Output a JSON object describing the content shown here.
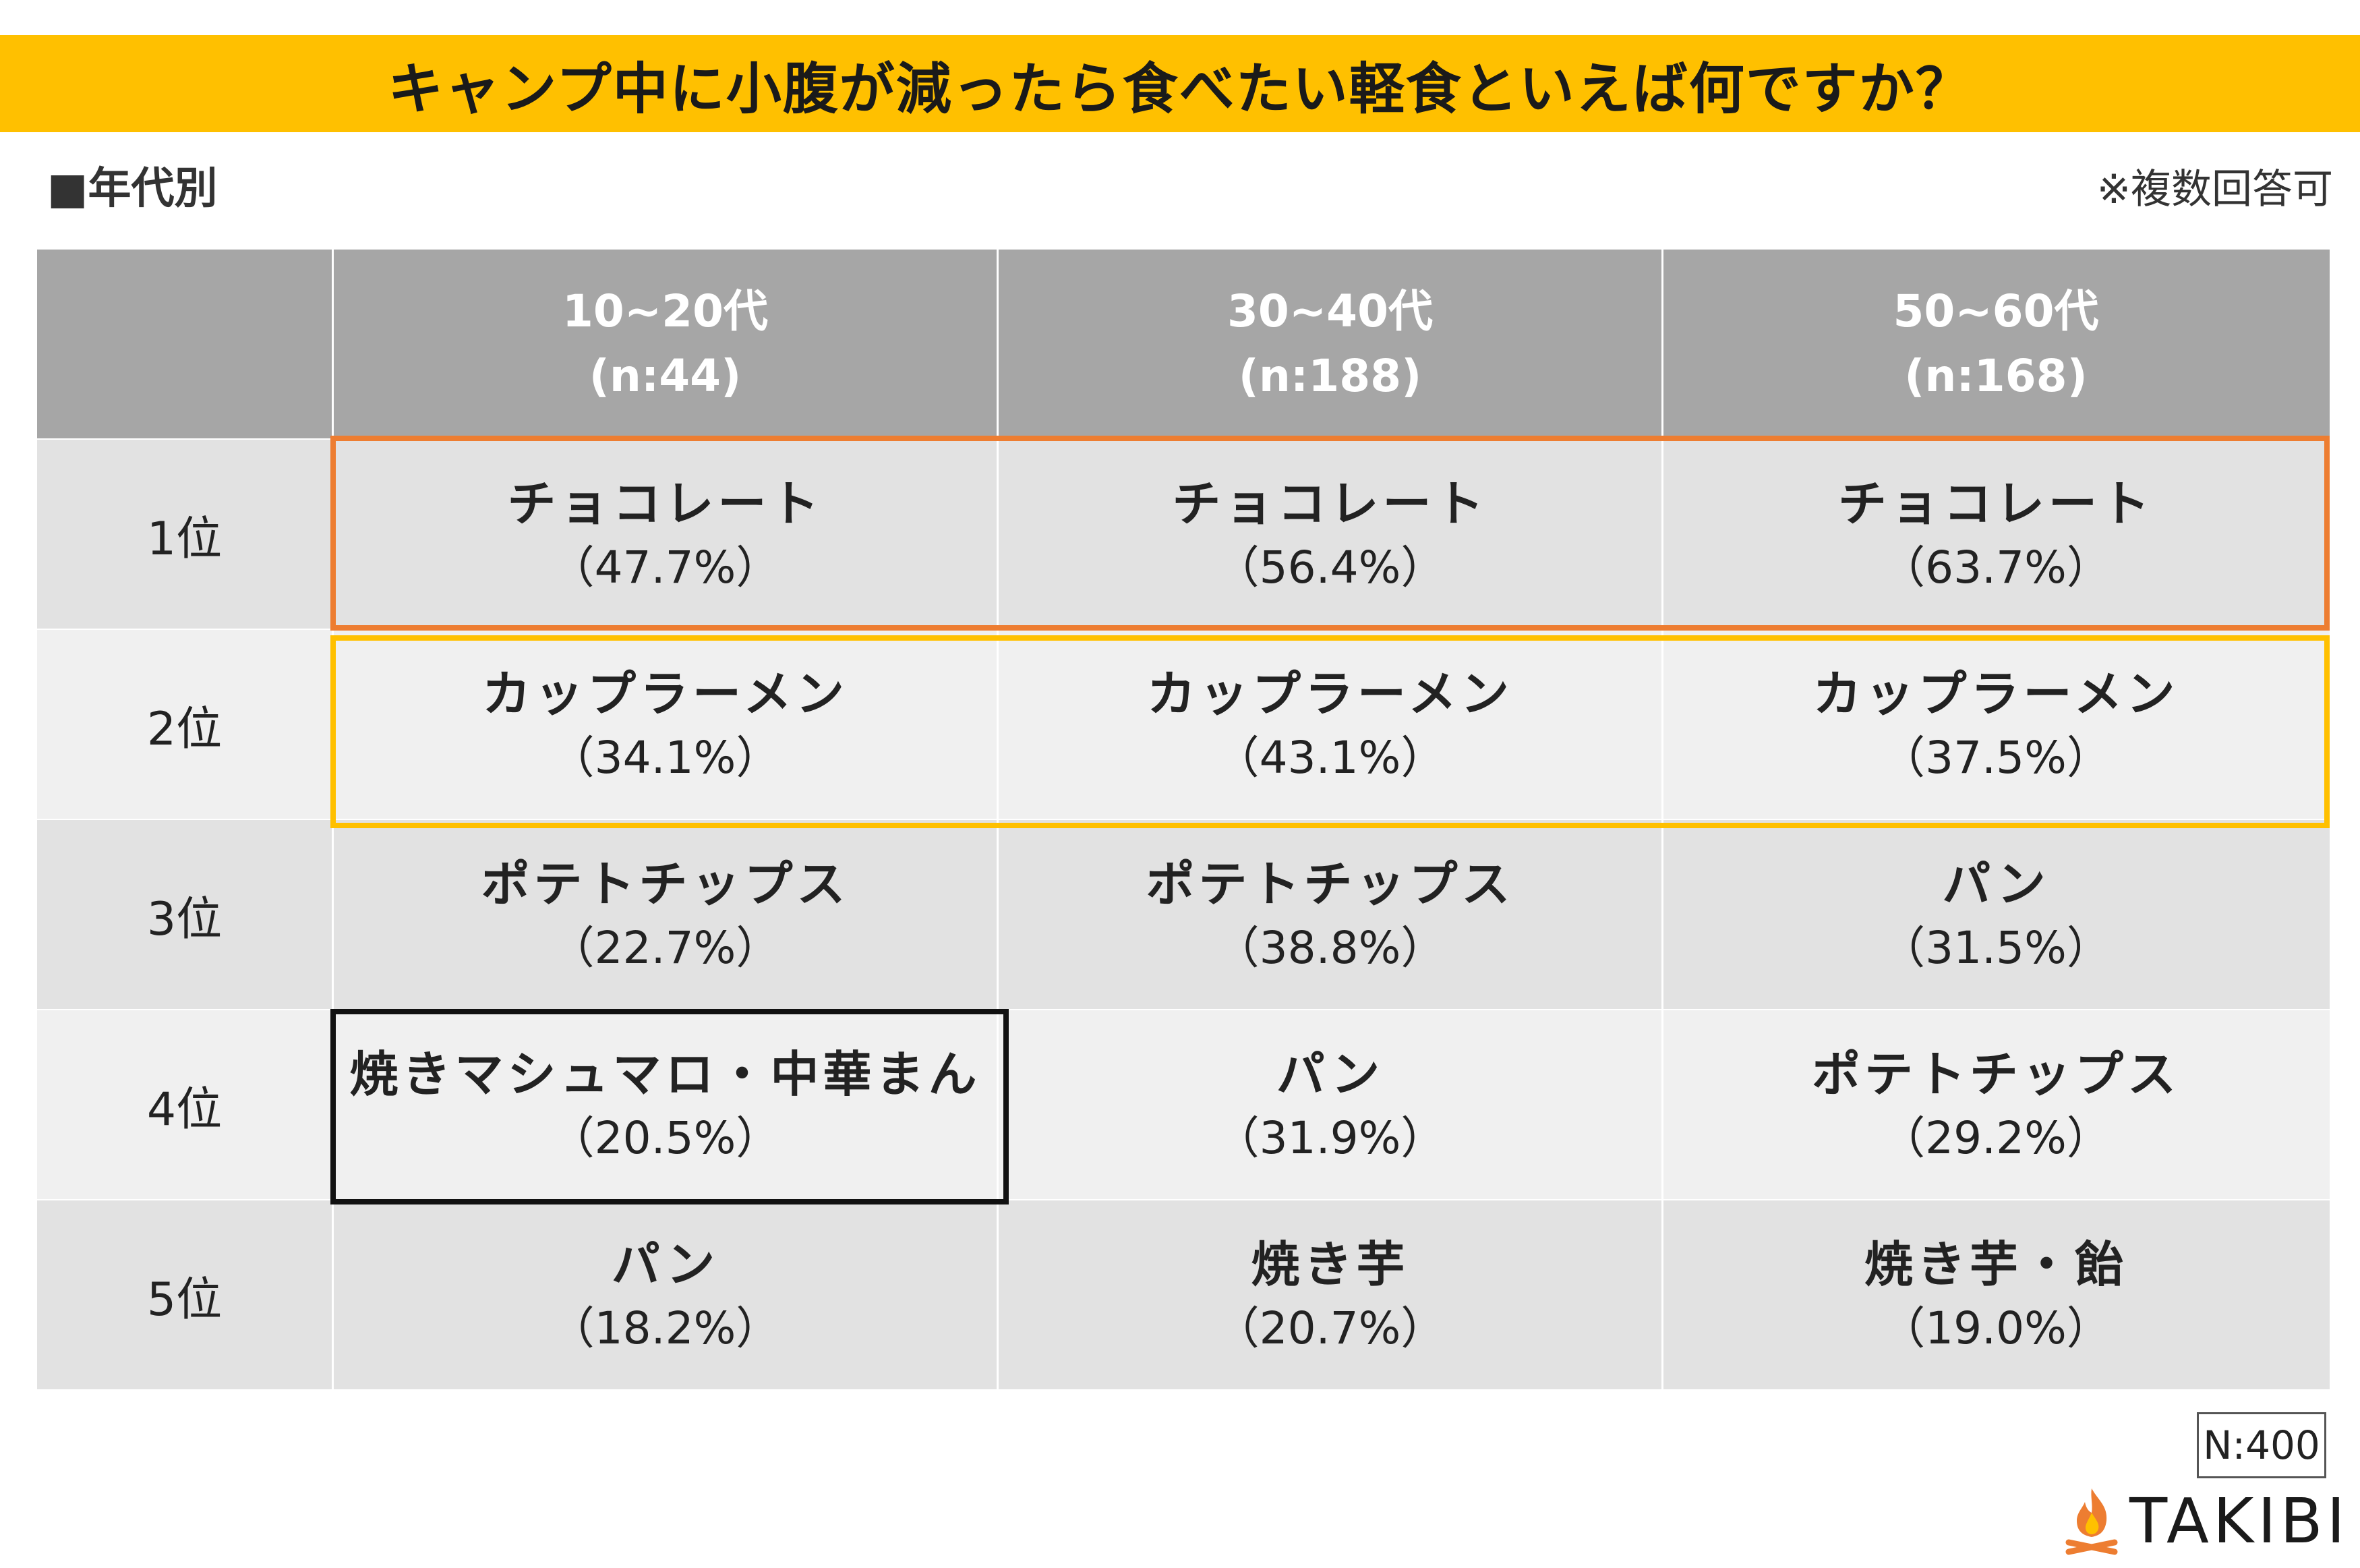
{
  "title": "キャンプ中に小腹が減ったら食べたい軽食といえば何ですか？",
  "section_label": "■年代別",
  "note": "※複数回答可",
  "sample_size": "N:400",
  "logo_text": "TAKIBI",
  "colors": {
    "banner": "#FFC000",
    "highlight_rank1": "#ED7D31",
    "highlight_rank2": "#FFC000",
    "highlight_box": "#111111",
    "header": "#A6A6A6"
  },
  "icons": {
    "logo": "campfire-icon"
  },
  "chart_data": {
    "type": "table",
    "columns": [
      {
        "label": "10~20代",
        "n": "(n:44)"
      },
      {
        "label": "30~40代",
        "n": "(n:188)"
      },
      {
        "label": "50~60代",
        "n": "(n:168)"
      }
    ],
    "rows": [
      {
        "rank": "1位",
        "cells": [
          {
            "item": "チョコレート",
            "pct": "（47.7%）",
            "value": 47.7
          },
          {
            "item": "チョコレート",
            "pct": "（56.4%）",
            "value": 56.4
          },
          {
            "item": "チョコレート",
            "pct": "（63.7%）",
            "value": 63.7
          }
        ]
      },
      {
        "rank": "2位",
        "cells": [
          {
            "item": "カップラーメン",
            "pct": "（34.1%）",
            "value": 34.1
          },
          {
            "item": "カップラーメン",
            "pct": "（43.1%）",
            "value": 43.1
          },
          {
            "item": "カップラーメン",
            "pct": "（37.5%）",
            "value": 37.5
          }
        ]
      },
      {
        "rank": "3位",
        "cells": [
          {
            "item": "ポテトチップス",
            "pct": "（22.7%）",
            "value": 22.7
          },
          {
            "item": "ポテトチップス",
            "pct": "（38.8%）",
            "value": 38.8
          },
          {
            "item": "パン",
            "pct": "（31.5%）",
            "value": 31.5
          }
        ]
      },
      {
        "rank": "4位",
        "cells": [
          {
            "item": "焼きマシュマロ・中華まん",
            "pct": "（20.5%）",
            "value": 20.5
          },
          {
            "item": "パン",
            "pct": "（31.9%）",
            "value": 31.9
          },
          {
            "item": "ポテトチップス",
            "pct": "（29.2%）",
            "value": 29.2
          }
        ]
      },
      {
        "rank": "5位",
        "cells": [
          {
            "item": "パン",
            "pct": "（18.2%）",
            "value": 18.2
          },
          {
            "item": "焼き芋",
            "pct": "（20.7%）",
            "value": 20.7
          },
          {
            "item": "焼き芋・飴",
            "pct": "（19.0%）",
            "value": 19.0
          }
        ]
      }
    ]
  }
}
